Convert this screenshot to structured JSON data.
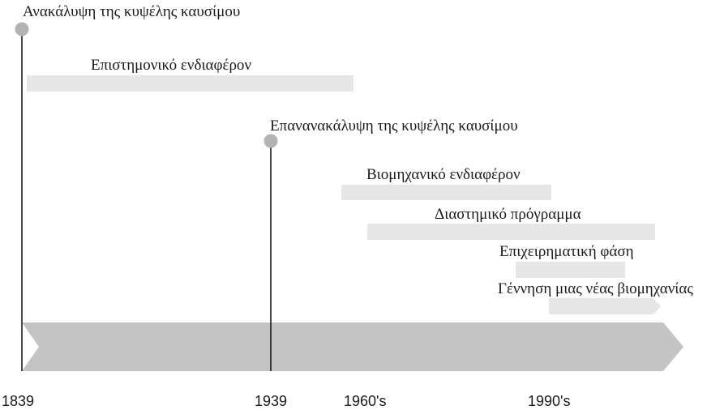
{
  "events": [
    {
      "id": "discovery",
      "label": "Ανακάλυψη της κυψέλης καυσίμου"
    },
    {
      "id": "rediscovery",
      "label": "Επανανακάλυψη της κυψέλης καυσίμου"
    }
  ],
  "periods": [
    {
      "id": "scientific-interest",
      "label": "Επιστημονικό ενδιαφέρον"
    },
    {
      "id": "industrial-interest",
      "label": "Βιομηχανικό ενδιαφέρον"
    },
    {
      "id": "space-program",
      "label": "Διαστημικό πρόγραμμα"
    },
    {
      "id": "business-phase",
      "label": "Επιχειρηματική φάση"
    },
    {
      "id": "new-industry",
      "label": "Γέννηση μιας νέας βιομηχανίας"
    }
  ],
  "axis_labels": [
    "1839",
    "1939",
    "1960's",
    "1990's"
  ],
  "colors": {
    "marker": "#b3b3b3",
    "band": "#e6e6e6",
    "arrow": "#c4c4c4",
    "line": "#1a1a1a"
  }
}
